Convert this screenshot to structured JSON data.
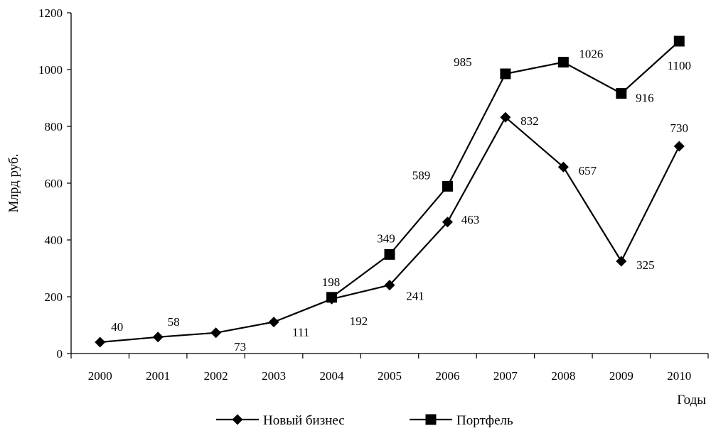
{
  "chart_data": {
    "type": "line",
    "ylabel": "Млрд руб.",
    "xlabel": "Годы",
    "ylim": [
      0,
      1200
    ],
    "yticks": [
      0,
      200,
      400,
      600,
      800,
      1000,
      1200
    ],
    "categories": [
      "2000",
      "2001",
      "2002",
      "2003",
      "2004",
      "2005",
      "2006",
      "2007",
      "2008",
      "2009",
      "2010"
    ],
    "grid": false,
    "legend_position": "bottom",
    "series": [
      {
        "name": "Новый бизнес",
        "marker": "diamond",
        "color": "#000000",
        "values": [
          40,
          58,
          73,
          111,
          192,
          241,
          463,
          832,
          657,
          325,
          730
        ]
      },
      {
        "name": "Портфель",
        "marker": "square",
        "color": "#000000",
        "x": [
          "2004",
          "2005",
          "2006",
          "2007",
          "2008",
          "2009",
          "2010"
        ],
        "values": [
          198,
          349,
          589,
          985,
          1026,
          916,
          1100
        ]
      }
    ]
  }
}
